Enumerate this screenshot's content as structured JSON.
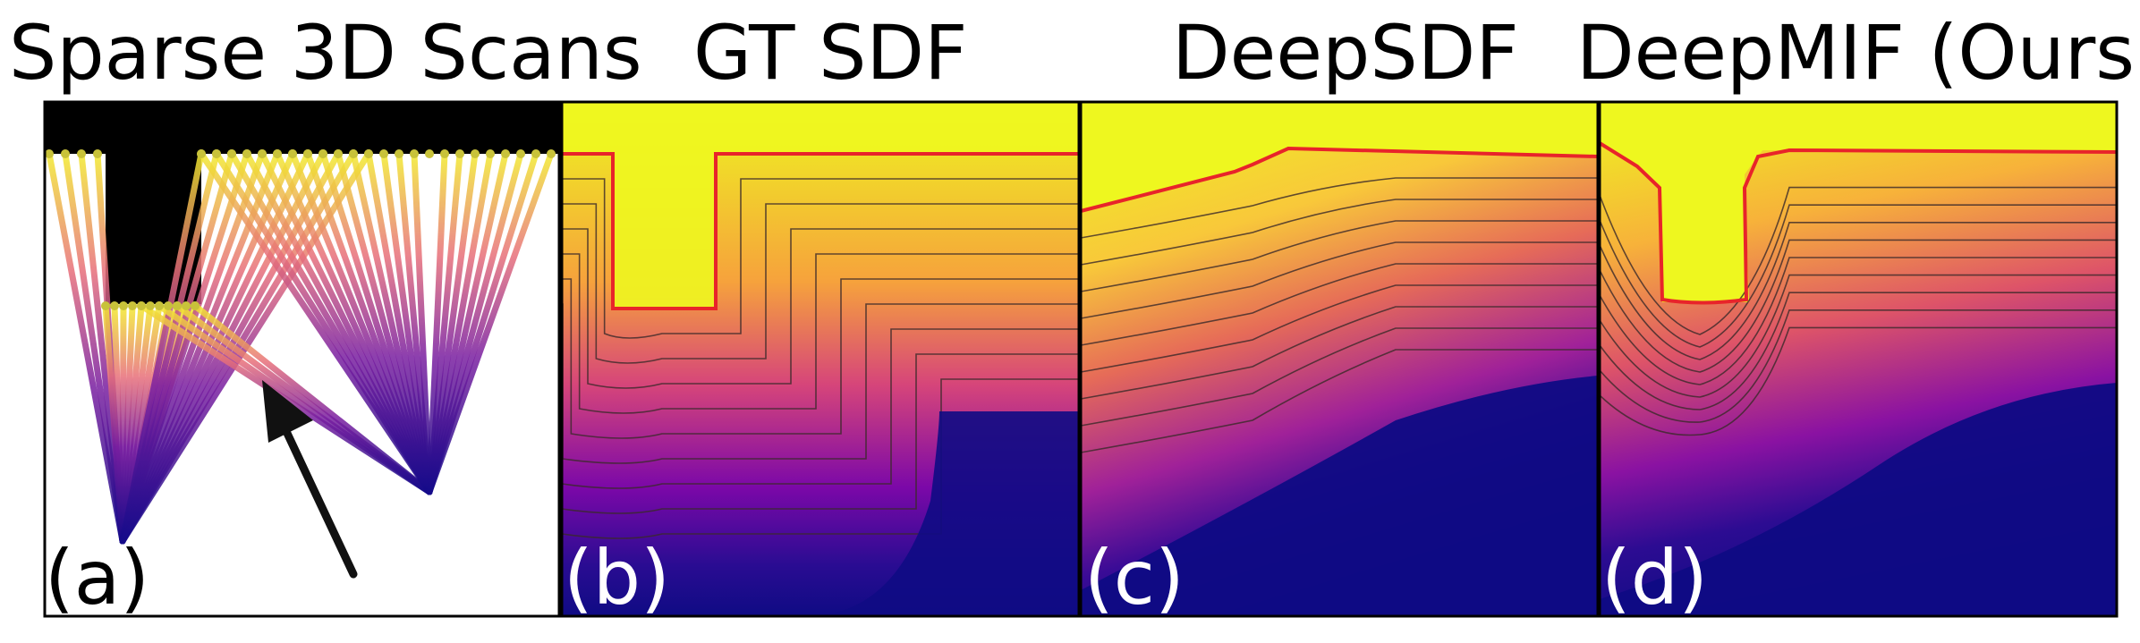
{
  "panels": [
    {
      "id": "a",
      "title": "Sparse 3D Scans",
      "label": "(a)"
    },
    {
      "id": "b",
      "title": "GT SDF",
      "label": "(b)"
    },
    {
      "id": "c",
      "title": "DeepSDF",
      "label": "(c)"
    },
    {
      "id": "d",
      "title": "DeepMIF (Ours)",
      "label": "(d)"
    }
  ],
  "colors": {
    "surface": "#e8242a",
    "ray_far": "#f2ea2f",
    "ray_mid": "#e8707a",
    "ray_near": "#150b8a",
    "sdf_deep": "#0f0b84",
    "sdf_high": "#eef71f",
    "occupancy": "#000000",
    "arrow": "#111111"
  }
}
